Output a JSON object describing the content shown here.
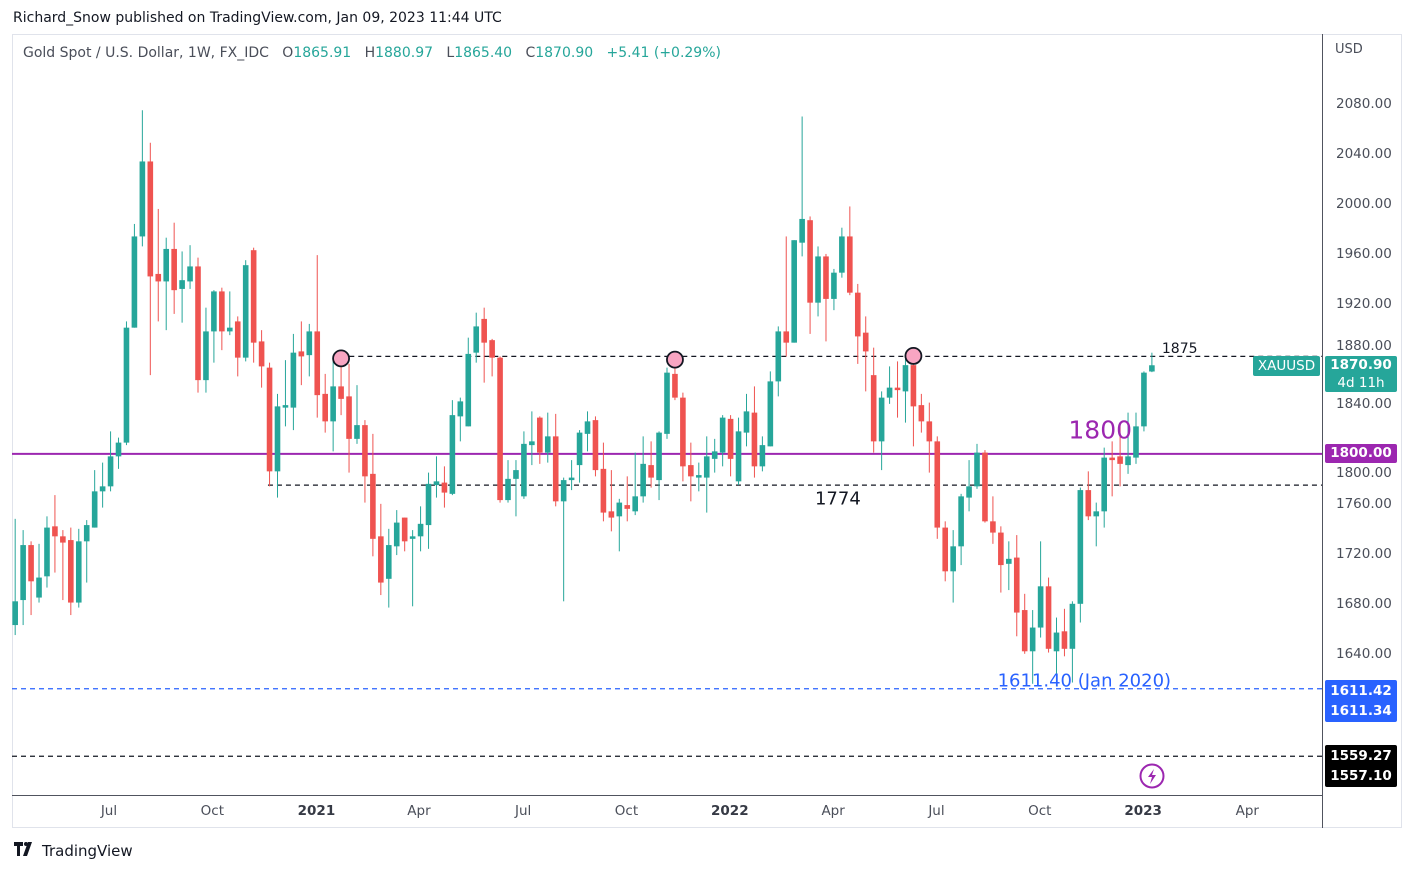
{
  "published": "Richard_Snow published on TradingView.com, Jan 09, 2023 11:44 UTC",
  "legend": {
    "title": "Gold Spot / U.S. Dollar, 1W, FX_IDC",
    "o_label": "O",
    "o": "1865.91",
    "h_label": "H",
    "h": "1880.97",
    "l_label": "L",
    "l": "1865.40",
    "c_label": "C",
    "c": "1870.90",
    "change": "+5.41 (+0.29%)"
  },
  "price_axis": {
    "currency": "USD",
    "symbol_badge": "XAUUSD",
    "last_price": "1870.90",
    "countdown": "4d 11h",
    "level_1800": "1800.00",
    "blue_hi": "1611.42",
    "blue_lo": "1611.34",
    "black_hi": "1559.27",
    "black_lo": "1557.10"
  },
  "footer": {
    "brand": "TradingView",
    "logo_text": "17"
  },
  "colors": {
    "up": "#26a69a",
    "down": "#ef5350",
    "purple": "#9c27b0",
    "blue": "#2962ff",
    "marker": "#f8a5c2"
  },
  "chart_data": {
    "type": "candlestick",
    "title": "Gold Spot / U.S. Dollar, 1W, FX_IDC",
    "interval": "1W",
    "ylim": [
      1527,
      2136
    ],
    "xlim_weeks": [
      -0.4,
      164.4
    ],
    "y_ticks": [
      1640,
      1680,
      1720,
      1760,
      1800,
      1840,
      1880,
      1920,
      1960,
      2000,
      2040,
      2080
    ],
    "x_ticks": [
      {
        "label": "Jul",
        "week": 11.8,
        "bold": false
      },
      {
        "label": "Oct",
        "week": 24.8,
        "bold": false
      },
      {
        "label": "2021",
        "week": 37.9,
        "bold": true
      },
      {
        "label": "Apr",
        "week": 50.8,
        "bold": false
      },
      {
        "label": "Jul",
        "week": 63.9,
        "bold": false
      },
      {
        "label": "Oct",
        "week": 76.9,
        "bold": false
      },
      {
        "label": "2022",
        "week": 89.9,
        "bold": true
      },
      {
        "label": "Apr",
        "week": 102.9,
        "bold": false
      },
      {
        "label": "Jul",
        "week": 115.9,
        "bold": false
      },
      {
        "label": "Oct",
        "week": 128.9,
        "bold": false
      },
      {
        "label": "2023",
        "week": 141.9,
        "bold": true
      },
      {
        "label": "Apr",
        "week": 155.0,
        "bold": false
      }
    ],
    "ohlc": [
      [
        1663,
        1748,
        1655,
        1682
      ],
      [
        1683,
        1739,
        1663,
        1727
      ],
      [
        1727,
        1730,
        1671,
        1698
      ],
      [
        1685,
        1728,
        1681,
        1701
      ],
      [
        1702,
        1750,
        1693,
        1741
      ],
      [
        1742,
        1767,
        1705,
        1734
      ],
      [
        1734,
        1739,
        1683,
        1729
      ],
      [
        1731,
        1741,
        1671,
        1681
      ],
      [
        1681,
        1740,
        1677,
        1730
      ],
      [
        1730,
        1747,
        1697,
        1743
      ],
      [
        1741,
        1787,
        1741,
        1770
      ],
      [
        1770,
        1793,
        1757,
        1774
      ],
      [
        1774,
        1818,
        1770,
        1798
      ],
      [
        1798,
        1813,
        1788,
        1809
      ],
      [
        1809,
        1906,
        1807,
        1901
      ],
      [
        1901,
        1984,
        1901,
        1974
      ],
      [
        1974,
        2075,
        1966,
        2034
      ],
      [
        2034,
        2049,
        1863,
        1942
      ],
      [
        1944,
        1996,
        1906,
        1938
      ],
      [
        1938,
        1973,
        1899,
        1964
      ],
      [
        1964,
        1985,
        1912,
        1931
      ],
      [
        1932,
        1962,
        1905,
        1939
      ],
      [
        1938,
        1967,
        1932,
        1950
      ],
      [
        1950,
        1957,
        1849,
        1859
      ],
      [
        1859,
        1917,
        1849,
        1898
      ],
      [
        1898,
        1931,
        1873,
        1930
      ],
      [
        1930,
        1933,
        1883,
        1898
      ],
      [
        1898,
        1930,
        1895,
        1901
      ],
      [
        1906,
        1910,
        1862,
        1877
      ],
      [
        1877,
        1955,
        1874,
        1951
      ],
      [
        1963,
        1965,
        1873,
        1889
      ],
      [
        1890,
        1899,
        1853,
        1870
      ],
      [
        1869,
        1873,
        1774,
        1786
      ],
      [
        1786,
        1848,
        1765,
        1838
      ],
      [
        1837,
        1875,
        1822,
        1839
      ],
      [
        1837,
        1896,
        1819,
        1881
      ],
      [
        1882,
        1906,
        1855,
        1878
      ],
      [
        1879,
        1904,
        1862,
        1898
      ],
      [
        1898,
        1959,
        1829,
        1847
      ],
      [
        1848,
        1864,
        1817,
        1826
      ],
      [
        1826,
        1875,
        1802,
        1854
      ],
      [
        1854,
        1878,
        1831,
        1844
      ],
      [
        1846,
        1872,
        1785,
        1812
      ],
      [
        1812,
        1855,
        1808,
        1823
      ],
      [
        1823,
        1827,
        1761,
        1782
      ],
      [
        1784,
        1816,
        1718,
        1732
      ],
      [
        1734,
        1760,
        1687,
        1697
      ],
      [
        1700,
        1740,
        1677,
        1727
      ],
      [
        1726,
        1755,
        1719,
        1745
      ],
      [
        1749,
        1749,
        1722,
        1730
      ],
      [
        1732,
        1739,
        1678,
        1734
      ],
      [
        1734,
        1758,
        1722,
        1744
      ],
      [
        1743,
        1785,
        1724,
        1776
      ],
      [
        1775,
        1798,
        1765,
        1778
      ],
      [
        1777,
        1790,
        1757,
        1769
      ],
      [
        1768,
        1843,
        1767,
        1831
      ],
      [
        1830,
        1845,
        1810,
        1842
      ],
      [
        1822,
        1893,
        1822,
        1880
      ],
      [
        1881,
        1913,
        1873,
        1902
      ],
      [
        1908,
        1917,
        1857,
        1889
      ],
      [
        1891,
        1892,
        1862,
        1877
      ],
      [
        1877,
        1878,
        1761,
        1763
      ],
      [
        1763,
        1795,
        1761,
        1780
      ],
      [
        1780,
        1795,
        1750,
        1787
      ],
      [
        1766,
        1818,
        1764,
        1808
      ],
      [
        1807,
        1834,
        1791,
        1810
      ],
      [
        1829,
        1830,
        1792,
        1801
      ],
      [
        1801,
        1833,
        1793,
        1814
      ],
      [
        1814,
        1832,
        1758,
        1762
      ],
      [
        1762,
        1781,
        1682,
        1779
      ],
      [
        1779,
        1795,
        1771,
        1781
      ],
      [
        1791,
        1819,
        1777,
        1817
      ],
      [
        1816,
        1834,
        1802,
        1826
      ],
      [
        1827,
        1830,
        1782,
        1787
      ],
      [
        1788,
        1809,
        1746,
        1753
      ],
      [
        1754,
        1787,
        1738,
        1749
      ],
      [
        1750,
        1764,
        1722,
        1761
      ],
      [
        1759,
        1782,
        1746,
        1756
      ],
      [
        1754,
        1801,
        1751,
        1766
      ],
      [
        1766,
        1814,
        1761,
        1792
      ],
      [
        1791,
        1810,
        1773,
        1781
      ],
      [
        1779,
        1818,
        1763,
        1817
      ],
      [
        1816,
        1869,
        1812,
        1865
      ],
      [
        1864,
        1877,
        1843,
        1845
      ],
      [
        1845,
        1849,
        1778,
        1790
      ],
      [
        1791,
        1809,
        1762,
        1782
      ],
      [
        1781,
        1793,
        1770,
        1783
      ],
      [
        1781,
        1814,
        1753,
        1798
      ],
      [
        1796,
        1812,
        1785,
        1802
      ],
      [
        1801,
        1831,
        1790,
        1829
      ],
      [
        1828,
        1831,
        1782,
        1796
      ],
      [
        1778,
        1829,
        1775,
        1818
      ],
      [
        1817,
        1848,
        1806,
        1834
      ],
      [
        1833,
        1854,
        1781,
        1790
      ],
      [
        1790,
        1814,
        1786,
        1807
      ],
      [
        1806,
        1866,
        1806,
        1858
      ],
      [
        1858,
        1902,
        1846,
        1898
      ],
      [
        1898,
        1974,
        1878,
        1889
      ],
      [
        1889,
        1971,
        1889,
        1971
      ],
      [
        1969,
        2070,
        1958,
        1988
      ],
      [
        1987,
        1990,
        1896,
        1921
      ],
      [
        1921,
        1966,
        1910,
        1958
      ],
      [
        1958,
        1960,
        1890,
        1924
      ],
      [
        1924,
        1948,
        1915,
        1945
      ],
      [
        1945,
        1981,
        1941,
        1974
      ],
      [
        1974,
        1998,
        1927,
        1929
      ],
      [
        1929,
        1936,
        1872,
        1894
      ],
      [
        1897,
        1910,
        1850,
        1882
      ],
      [
        1863,
        1885,
        1801,
        1810
      ],
      [
        1810,
        1850,
        1787,
        1845
      ],
      [
        1845,
        1870,
        1840,
        1853
      ],
      [
        1853,
        1874,
        1829,
        1851
      ],
      [
        1850,
        1876,
        1825,
        1871
      ],
      [
        1871,
        1880,
        1806,
        1838
      ],
      [
        1839,
        1848,
        1817,
        1826
      ],
      [
        1826,
        1841,
        1785,
        1810
      ],
      [
        1810,
        1814,
        1732,
        1741
      ],
      [
        1741,
        1746,
        1698,
        1706
      ],
      [
        1706,
        1739,
        1681,
        1726
      ],
      [
        1726,
        1768,
        1711,
        1766
      ],
      [
        1765,
        1795,
        1754,
        1774
      ],
      [
        1774,
        1808,
        1772,
        1801
      ],
      [
        1801,
        1803,
        1745,
        1746
      ],
      [
        1746,
        1766,
        1728,
        1737
      ],
      [
        1737,
        1742,
        1689,
        1711
      ],
      [
        1712,
        1730,
        1691,
        1716
      ],
      [
        1717,
        1735,
        1654,
        1673
      ],
      [
        1675,
        1688,
        1640,
        1642
      ],
      [
        1642,
        1675,
        1616,
        1661
      ],
      [
        1661,
        1730,
        1653,
        1694
      ],
      [
        1694,
        1701,
        1641,
        1644
      ],
      [
        1642,
        1669,
        1618,
        1657
      ],
      [
        1658,
        1676,
        1638,
        1644
      ],
      [
        1644,
        1682,
        1617,
        1680
      ],
      [
        1680,
        1773,
        1665,
        1771
      ],
      [
        1771,
        1786,
        1747,
        1750
      ],
      [
        1750,
        1761,
        1726,
        1754
      ],
      [
        1754,
        1805,
        1741,
        1797
      ],
      [
        1797,
        1810,
        1766,
        1795
      ],
      [
        1798,
        1823,
        1774,
        1792
      ],
      [
        1791,
        1833,
        1784,
        1798
      ],
      [
        1797,
        1833,
        1792,
        1822
      ],
      [
        1822,
        1866,
        1818,
        1865
      ],
      [
        1865.91,
        1880.97,
        1865.4,
        1870.9
      ]
    ],
    "annotations": [
      {
        "name": "resistance-1875",
        "price": 1878,
        "style": "dashed",
        "color": "#131722",
        "start_week": 40.9,
        "label": "1875"
      },
      {
        "name": "support-1774",
        "price": 1775,
        "style": "dashed",
        "color": "#131722",
        "start_week": 31.8,
        "label": "1774"
      },
      {
        "name": "level-1800",
        "price": 1800,
        "style": "solid",
        "color": "#9c27b0",
        "start_week": -0.4,
        "label": "1800"
      },
      {
        "name": "low-1611",
        "price": 1612,
        "style": "dashed",
        "color": "#2962ff",
        "start_week": -0.4,
        "label": "1611.40 (Jan 2020)"
      },
      {
        "name": "black-1558",
        "price": 1558,
        "style": "dashed",
        "color": "#131722",
        "start_week": -0.4,
        "label": ""
      }
    ],
    "marked_candles": [
      41,
      83,
      113
    ]
  }
}
